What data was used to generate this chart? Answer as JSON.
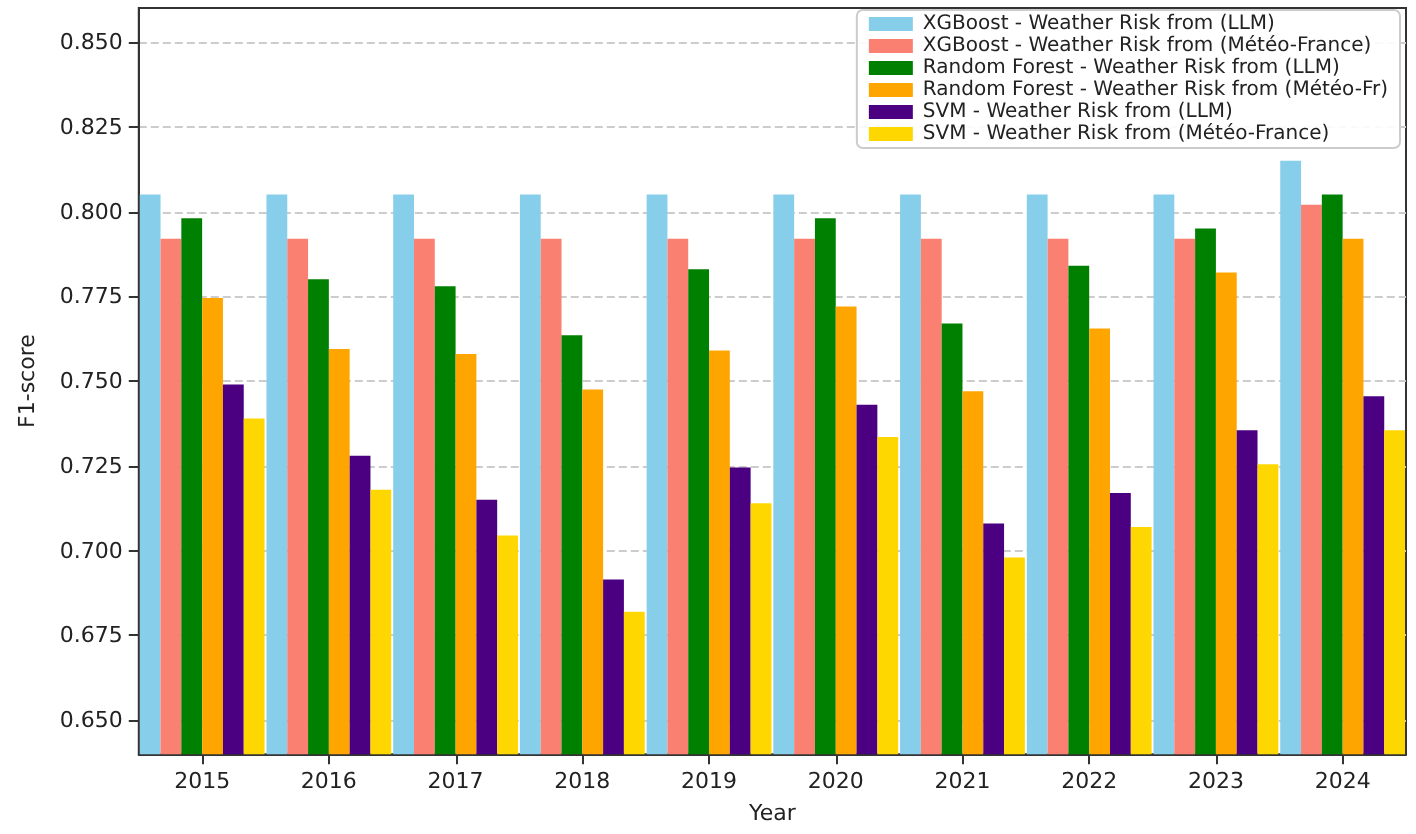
{
  "chart_data": {
    "type": "bar",
    "xlabel": "Year",
    "ylabel": "F1-score",
    "categories": [
      "2015",
      "2016",
      "2017",
      "2018",
      "2019",
      "2020",
      "2021",
      "2022",
      "2023",
      "2024"
    ],
    "series": [
      {
        "name": "XGBoost - Weather Risk from (LLM)",
        "color": "#87ceeb",
        "values": [
          0.805,
          0.805,
          0.805,
          0.805,
          0.805,
          0.805,
          0.805,
          0.805,
          0.805,
          0.815
        ]
      },
      {
        "name": "XGBoost - Weather Risk from (Météo-France)",
        "color": "#fa8072",
        "values": [
          0.792,
          0.792,
          0.792,
          0.792,
          0.792,
          0.792,
          0.792,
          0.792,
          0.792,
          0.802
        ]
      },
      {
        "name": "Random Forest - Weather Risk from (LLM)",
        "color": "#008000",
        "values": [
          0.798,
          0.78,
          0.778,
          0.7635,
          0.783,
          0.798,
          0.767,
          0.784,
          0.795,
          0.805
        ]
      },
      {
        "name": "Random Forest - Weather Risk from (Météo-Fr)",
        "color": "#ffa500",
        "values": [
          0.7745,
          0.7595,
          0.758,
          0.7475,
          0.759,
          0.772,
          0.747,
          0.7655,
          0.782,
          0.792
        ]
      },
      {
        "name": "SVM - Weather Risk from (LLM)",
        "color": "#4b0082",
        "values": [
          0.749,
          0.728,
          0.715,
          0.6915,
          0.7245,
          0.743,
          0.708,
          0.717,
          0.7355,
          0.7455
        ]
      },
      {
        "name": "SVM - Weather Risk from (Météo-France)",
        "color": "#ffd700",
        "values": [
          0.739,
          0.718,
          0.7045,
          0.682,
          0.714,
          0.7335,
          0.698,
          0.707,
          0.7255,
          0.7355
        ]
      }
    ],
    "ylim": [
      0.64,
      0.86
    ],
    "yticks": [
      {
        "value": 0.65,
        "label": "0.650"
      },
      {
        "value": 0.675,
        "label": "0.675"
      },
      {
        "value": 0.7,
        "label": "0.700"
      },
      {
        "value": 0.725,
        "label": "0.725"
      },
      {
        "value": 0.75,
        "label": "0.750"
      },
      {
        "value": 0.775,
        "label": "0.775"
      },
      {
        "value": 0.8,
        "label": "0.800"
      },
      {
        "value": 0.825,
        "label": "0.825"
      },
      {
        "value": 0.85,
        "label": "0.850"
      }
    ],
    "grid": "y",
    "legend": "top right"
  }
}
